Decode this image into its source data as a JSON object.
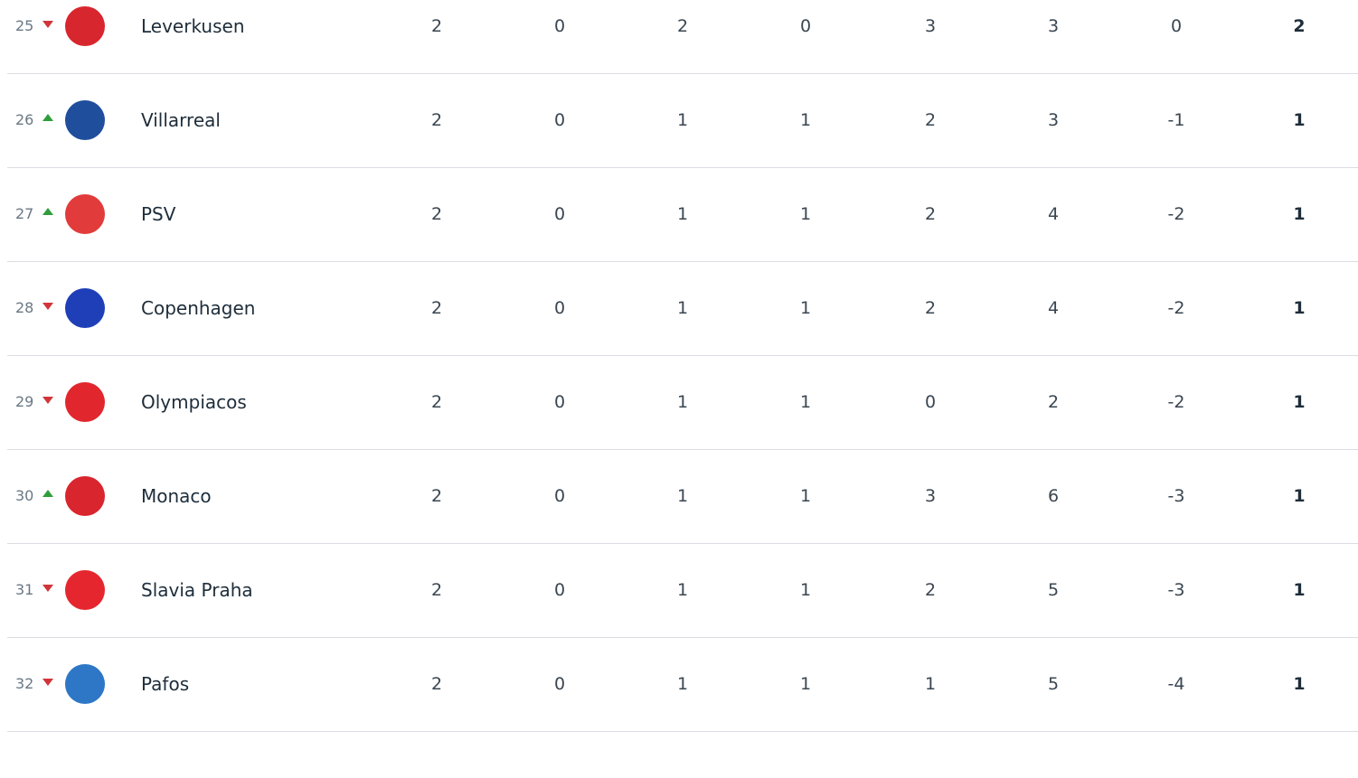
{
  "colors": {
    "down": "#d0353a",
    "up": "#2f9e3a",
    "divider": "#dcdde3"
  },
  "rows": [
    {
      "rank": "25",
      "trend": "down",
      "team": "Leverkusen",
      "logo": "leverkusen-crest",
      "logo_color": "#d8262e",
      "stats": [
        "2",
        "0",
        "2",
        "0",
        "3",
        "3",
        "0"
      ],
      "points": "2"
    },
    {
      "rank": "26",
      "trend": "up",
      "team": "Villarreal",
      "logo": "villarreal-crest",
      "logo_color": "#1f4e9c",
      "stats": [
        "2",
        "0",
        "1",
        "1",
        "2",
        "3",
        "-1"
      ],
      "points": "1"
    },
    {
      "rank": "27",
      "trend": "up",
      "team": "PSV",
      "logo": "psv-crest",
      "logo_color": "#e23b3b",
      "stats": [
        "2",
        "0",
        "1",
        "1",
        "2",
        "4",
        "-2"
      ],
      "points": "1"
    },
    {
      "rank": "28",
      "trend": "down",
      "team": "Copenhagen",
      "logo": "copenhagen-crest",
      "logo_color": "#1f3fb8",
      "stats": [
        "2",
        "0",
        "1",
        "1",
        "2",
        "4",
        "-2"
      ],
      "points": "1"
    },
    {
      "rank": "29",
      "trend": "down",
      "team": "Olympiacos",
      "logo": "olympiacos-crest",
      "logo_color": "#e2262e",
      "stats": [
        "2",
        "0",
        "1",
        "1",
        "0",
        "2",
        "-2"
      ],
      "points": "1"
    },
    {
      "rank": "30",
      "trend": "up",
      "team": "Monaco",
      "logo": "monaco-crest",
      "logo_color": "#d9252e",
      "stats": [
        "2",
        "0",
        "1",
        "1",
        "3",
        "6",
        "-3"
      ],
      "points": "1"
    },
    {
      "rank": "31",
      "trend": "down",
      "team": "Slavia Praha",
      "logo": "slavia-praha-crest",
      "logo_color": "#e5262e",
      "stats": [
        "2",
        "0",
        "1",
        "1",
        "2",
        "5",
        "-3"
      ],
      "points": "1"
    },
    {
      "rank": "32",
      "trend": "down",
      "team": "Pafos",
      "logo": "pafos-crest",
      "logo_color": "#2d77c6",
      "stats": [
        "2",
        "0",
        "1",
        "1",
        "1",
        "5",
        "-4"
      ],
      "points": "1"
    }
  ]
}
